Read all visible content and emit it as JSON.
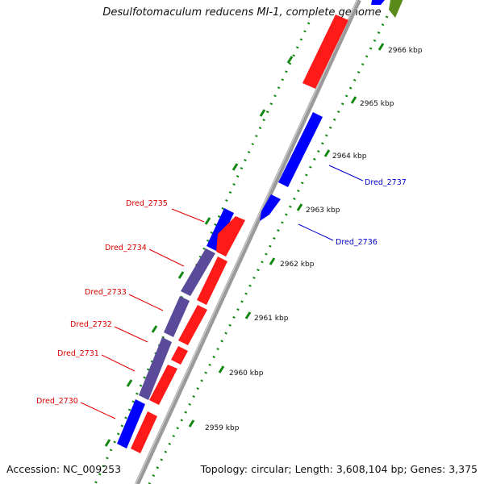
{
  "title": "Desulfotomaculum reducens MI-1, complete genome",
  "accession": "Accession: NC_009253",
  "summary": "Topology: circular; Length: 3,608,104 bp; Genes: 3,375",
  "colors": {
    "forward_strand": "#ff1a1a",
    "reverse_strand": "#0000ff",
    "overlap": "#5a4a9a",
    "backbone": "#9a9a9a",
    "ticks": "#118811",
    "label_forward": "#dd0000",
    "label_reverse": "#0000cc"
  },
  "scale_labels": [
    "2966 kbp",
    "2965 kbp",
    "2964 kbp",
    "2963 kbp",
    "2962 kbp",
    "2961 kbp",
    "2960 kbp",
    "2959 kbp"
  ],
  "gene_labels": {
    "forward": [
      "Dred_2735",
      "Dred_2734",
      "Dred_2733",
      "Dred_2732",
      "Dred_2731",
      "Dred_2730"
    ],
    "reverse": [
      "Dred_2737",
      "Dred_2736"
    ]
  }
}
